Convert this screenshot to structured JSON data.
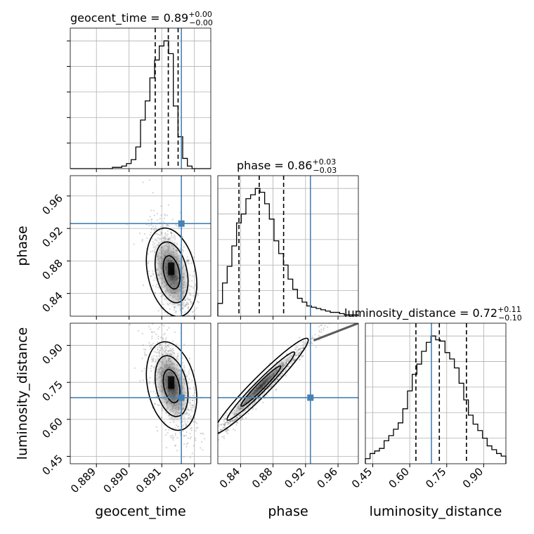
{
  "chart_data": {
    "type": "corner",
    "parameters": [
      "geocent_time",
      "phase",
      "luminosity_distance"
    ],
    "titles": [
      {
        "text": "geocent_time = 0.89",
        "plus": "+0.00",
        "minus": "−0.00"
      },
      {
        "text": "phase = 0.86",
        "plus": "+0.03",
        "minus": "−0.03"
      },
      {
        "text": "luminosity_distance = 0.72",
        "plus": "+0.11",
        "minus": "−0.10"
      }
    ],
    "xlabels": [
      "geocent_time",
      "phase",
      "luminosity_distance"
    ],
    "ylabels": [
      "",
      "phase",
      "luminosity_distance"
    ],
    "ranges": [
      [
        0.8882,
        0.8925
      ],
      [
        0.812,
        0.985
      ],
      [
        0.42,
        0.99
      ]
    ],
    "ticks": [
      {
        "values": [
          0.889,
          0.89,
          0.891,
          0.892
        ],
        "labels": [
          "0.889",
          "0.890",
          "0.891",
          "0.892"
        ]
      },
      {
        "values": [
          0.84,
          0.88,
          0.92,
          0.96
        ],
        "labels": [
          "0.84",
          "0.88",
          "0.92",
          "0.96"
        ]
      },
      {
        "values": [
          0.45,
          0.6,
          0.75,
          0.9
        ],
        "labels": [
          "0.45",
          "0.60",
          "0.75",
          "0.90"
        ]
      }
    ],
    "truths": [
      0.8916,
      0.926,
      0.688
    ],
    "quantiles": [
      [
        0.8908,
        0.8912,
        0.8915
      ],
      [
        0.838,
        0.863,
        0.893
      ],
      [
        0.625,
        0.72,
        0.83
      ]
    ],
    "histograms": [
      [
        0.0,
        0.0,
        0.0,
        0.0,
        0.0,
        0.0,
        0.0,
        0.0,
        0.0,
        0.01,
        0.01,
        0.02,
        0.04,
        0.07,
        0.17,
        0.38,
        0.53,
        0.71,
        0.85,
        0.96,
        1.0,
        0.9,
        0.49,
        0.25,
        0.08,
        0.02,
        0.0,
        0.0,
        0.0,
        0.0
      ],
      [
        0.1,
        0.26,
        0.39,
        0.55,
        0.73,
        0.8,
        0.92,
        0.95,
        1.0,
        0.97,
        0.88,
        0.76,
        0.59,
        0.49,
        0.4,
        0.29,
        0.21,
        0.14,
        0.11,
        0.08,
        0.07,
        0.06,
        0.05,
        0.04,
        0.03,
        0.03,
        0.02,
        0.01,
        0.01,
        0.01
      ],
      [
        0.04,
        0.08,
        0.1,
        0.12,
        0.18,
        0.22,
        0.27,
        0.32,
        0.43,
        0.57,
        0.7,
        0.78,
        0.88,
        0.95,
        1.0,
        0.97,
        0.96,
        0.87,
        0.82,
        0.75,
        0.63,
        0.5,
        0.38,
        0.31,
        0.26,
        0.2,
        0.14,
        0.11,
        0.08,
        0.06
      ]
    ],
    "hist_ylim": [
      0,
      1.1
    ],
    "grid": true
  }
}
